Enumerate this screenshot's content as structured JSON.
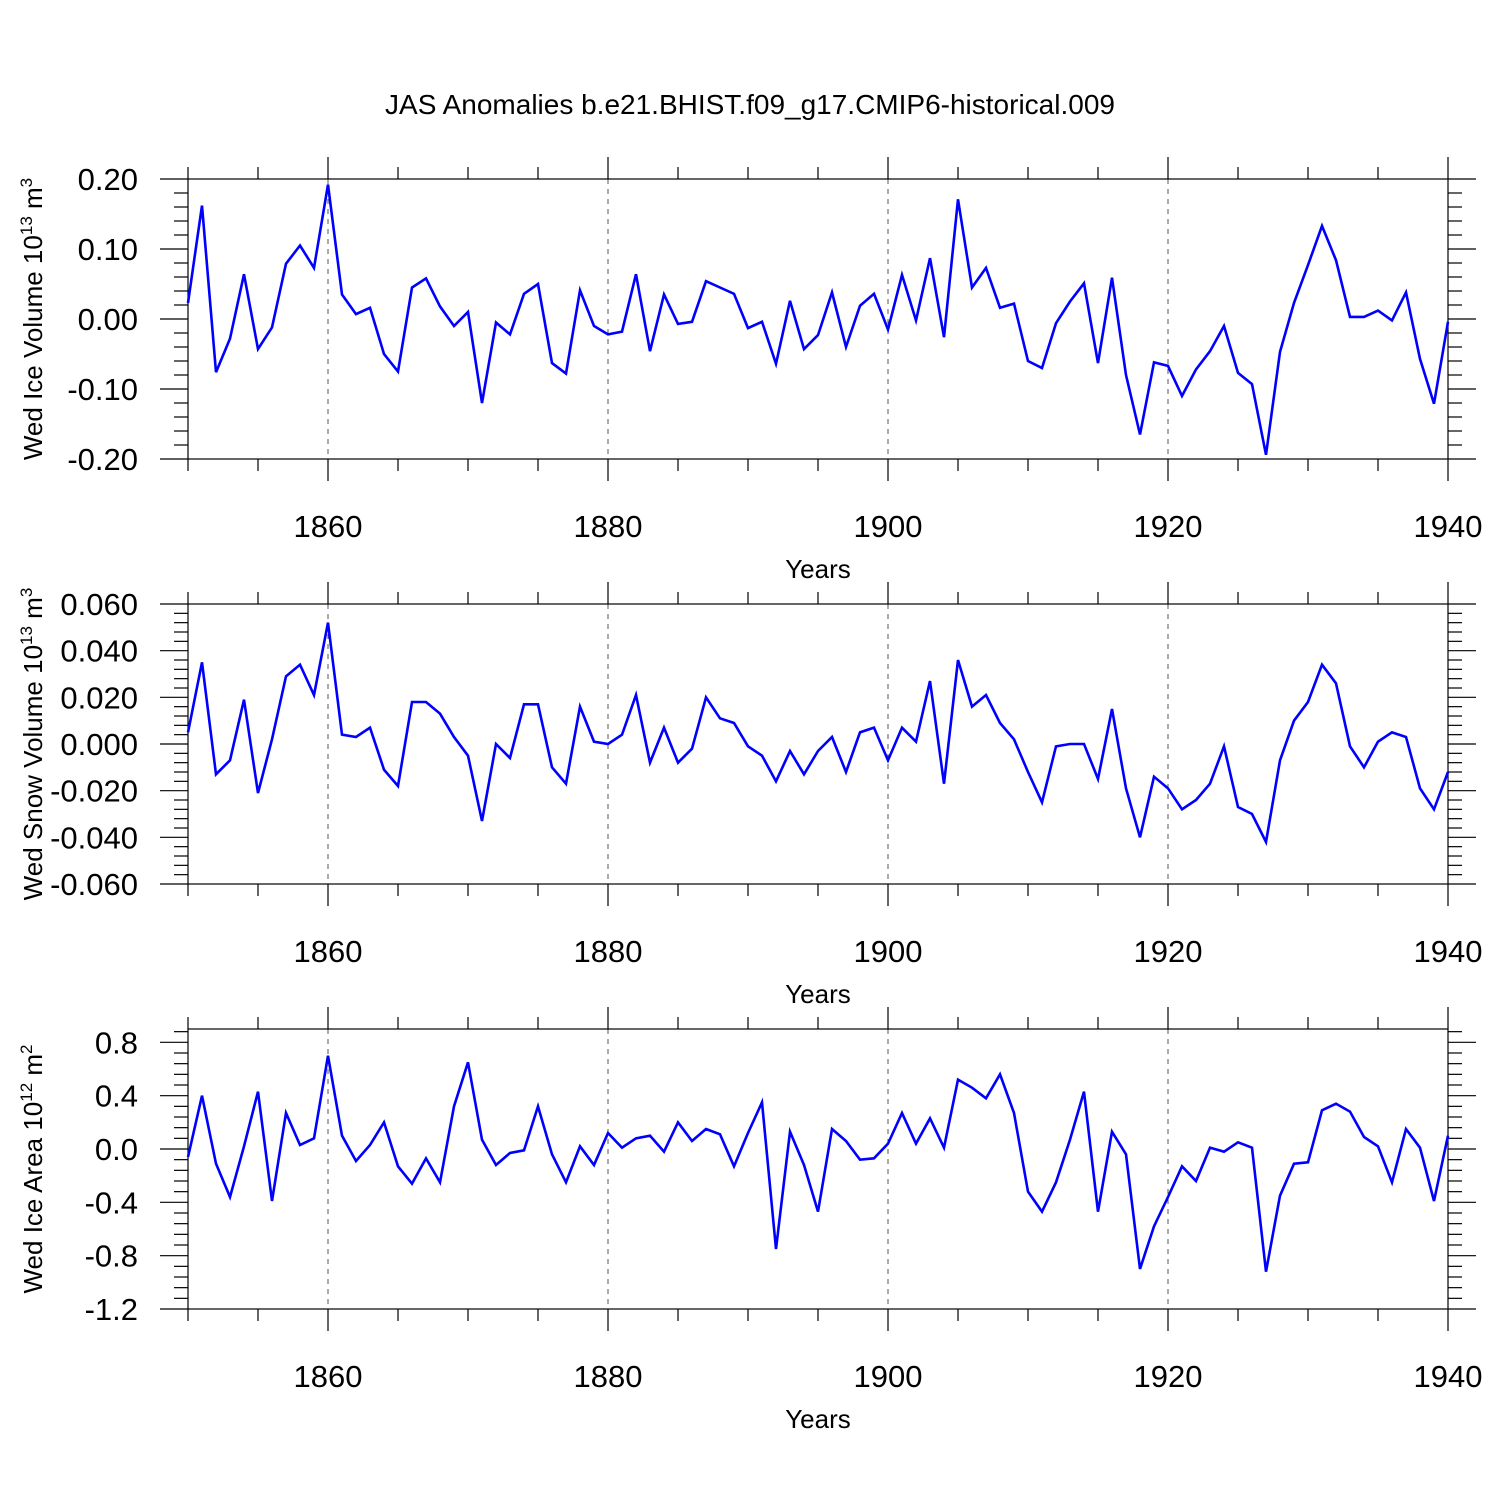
{
  "title": "JAS Anomalies b.e21.BHIST.f09_g17.CMIP6-historical.009",
  "colors": {
    "line": "#0000ff",
    "axis": "#000000",
    "grid": "#555555"
  },
  "chart_data": [
    {
      "type": "line",
      "xlabel": "Years",
      "ylabel": {
        "text": "Wed Ice Volume 10",
        "sup": "13",
        "unit": " m",
        "unit_sup": "3"
      },
      "xlim": [
        1850,
        1940
      ],
      "ylim": [
        -0.2,
        0.2
      ],
      "xticks": [
        1860,
        1880,
        1900,
        1920,
        1940
      ],
      "xtick_labels": [
        "1860",
        "1880",
        "1900",
        "1920",
        "1940"
      ],
      "yticks": [
        -0.2,
        -0.1,
        0.0,
        0.1,
        0.2
      ],
      "ytick_labels": [
        "-0.20",
        "-0.10",
        "0.00",
        "0.10",
        "0.20"
      ],
      "grid": "dashed vertical at major x ticks",
      "series": [
        {
          "x_start": 1850,
          "values": [
            0.023,
            0.162,
            -0.076,
            -0.028,
            0.064,
            -0.043,
            -0.012,
            0.079,
            0.105,
            0.073,
            0.192,
            0.035,
            0.007,
            0.016,
            -0.05,
            -0.075,
            0.045,
            0.058,
            0.018,
            -0.01,
            0.01,
            -0.12,
            -0.005,
            -0.022,
            0.036,
            0.05,
            -0.063,
            -0.078,
            0.041,
            -0.01,
            -0.022,
            -0.018,
            0.064,
            -0.046,
            0.035,
            -0.007,
            -0.004,
            0.054,
            0.045,
            0.036,
            -0.013,
            -0.004,
            -0.064,
            0.026,
            -0.043,
            -0.023,
            0.038,
            -0.04,
            0.019,
            0.036,
            -0.015,
            0.063,
            -0.002,
            0.087,
            -0.026,
            0.171,
            0.045,
            0.073,
            0.016,
            0.022,
            -0.06,
            -0.07,
            -0.006,
            0.025,
            0.051,
            -0.063,
            0.059,
            -0.08,
            -0.165,
            -0.062,
            -0.067,
            -0.11,
            -0.072,
            -0.046,
            -0.01,
            -0.077,
            -0.093,
            -0.194,
            -0.047,
            0.023,
            0.077,
            0.133,
            0.084,
            0.003,
            0.003,
            0.012,
            -0.002,
            0.038,
            -0.057,
            -0.121,
            -0.004
          ]
        }
      ]
    },
    {
      "type": "line",
      "xlabel": "Years",
      "ylabel": {
        "text": "Wed Snow Volume 10",
        "sup": "13",
        "unit": " m",
        "unit_sup": "3"
      },
      "xlim": [
        1850,
        1940
      ],
      "ylim": [
        -0.06,
        0.06
      ],
      "xticks": [
        1860,
        1880,
        1900,
        1920,
        1940
      ],
      "xtick_labels": [
        "1860",
        "1880",
        "1900",
        "1920",
        "1940"
      ],
      "yticks": [
        -0.06,
        -0.04,
        -0.02,
        0.0,
        0.02,
        0.04,
        0.06
      ],
      "ytick_labels": [
        "-0.060",
        "-0.040",
        "-0.020",
        "0.000",
        "0.020",
        "0.040",
        "0.060"
      ],
      "grid": "dashed vertical at major x ticks",
      "series": [
        {
          "x_start": 1850,
          "values": [
            0.005,
            0.035,
            -0.013,
            -0.007,
            0.019,
            -0.021,
            0.002,
            0.029,
            0.034,
            0.021,
            0.052,
            0.004,
            0.003,
            0.007,
            -0.011,
            -0.018,
            0.018,
            0.018,
            0.013,
            0.003,
            -0.005,
            -0.033,
            0.0,
            -0.006,
            0.017,
            0.017,
            -0.01,
            -0.017,
            0.016,
            0.001,
            0.0,
            0.004,
            0.021,
            -0.008,
            0.007,
            -0.008,
            -0.002,
            0.02,
            0.011,
            0.009,
            -0.001,
            -0.005,
            -0.016,
            -0.003,
            -0.013,
            -0.003,
            0.003,
            -0.012,
            0.005,
            0.007,
            -0.007,
            0.007,
            0.001,
            0.027,
            -0.017,
            0.036,
            0.016,
            0.021,
            0.009,
            0.002,
            -0.012,
            -0.025,
            -0.001,
            0.0,
            0.0,
            -0.015,
            0.015,
            -0.019,
            -0.04,
            -0.014,
            -0.019,
            -0.028,
            -0.024,
            -0.017,
            -0.001,
            -0.027,
            -0.03,
            -0.042,
            -0.007,
            0.01,
            0.018,
            0.034,
            0.026,
            -0.001,
            -0.01,
            0.001,
            0.005,
            0.003,
            -0.019,
            -0.028,
            -0.012
          ]
        }
      ]
    },
    {
      "type": "line",
      "xlabel": "Years",
      "ylabel": {
        "text": "Wed Ice Area 10",
        "sup": "12",
        "unit": " m",
        "unit_sup": "2"
      },
      "xlim": [
        1850,
        1940
      ],
      "ylim": [
        -1.2,
        0.9
      ],
      "xticks": [
        1860,
        1880,
        1900,
        1920,
        1940
      ],
      "xtick_labels": [
        "1860",
        "1880",
        "1900",
        "1920",
        "1940"
      ],
      "yticks": [
        -1.2,
        -0.8,
        -0.4,
        0.0,
        0.4,
        0.8
      ],
      "ytick_labels": [
        "-1.2",
        "-0.8",
        "-0.4",
        "0.0",
        "0.4",
        "0.8"
      ],
      "grid": "dashed vertical at major x ticks",
      "series": [
        {
          "x_start": 1850,
          "values": [
            -0.06,
            0.4,
            -0.11,
            -0.36,
            0.02,
            0.43,
            -0.39,
            0.27,
            0.03,
            0.08,
            0.7,
            0.1,
            -0.09,
            0.03,
            0.2,
            -0.13,
            -0.26,
            -0.07,
            -0.25,
            0.32,
            0.65,
            0.07,
            -0.12,
            -0.03,
            -0.01,
            0.32,
            -0.04,
            -0.25,
            0.02,
            -0.12,
            0.12,
            0.01,
            0.08,
            0.1,
            -0.02,
            0.2,
            0.06,
            0.15,
            0.11,
            -0.13,
            0.12,
            0.35,
            -0.75,
            0.13,
            -0.12,
            -0.47,
            0.15,
            0.06,
            -0.08,
            -0.07,
            0.04,
            0.27,
            0.04,
            0.23,
            0.01,
            0.52,
            0.46,
            0.38,
            0.56,
            0.27,
            -0.32,
            -0.47,
            -0.25,
            0.07,
            0.43,
            -0.47,
            0.13,
            -0.04,
            -0.9,
            -0.58,
            -0.36,
            -0.13,
            -0.24,
            0.01,
            -0.02,
            0.05,
            0.01,
            -0.92,
            -0.35,
            -0.11,
            -0.1,
            0.29,
            0.34,
            0.28,
            0.09,
            0.02,
            -0.25,
            0.15,
            0.01,
            -0.39,
            0.1
          ]
        }
      ]
    }
  ]
}
